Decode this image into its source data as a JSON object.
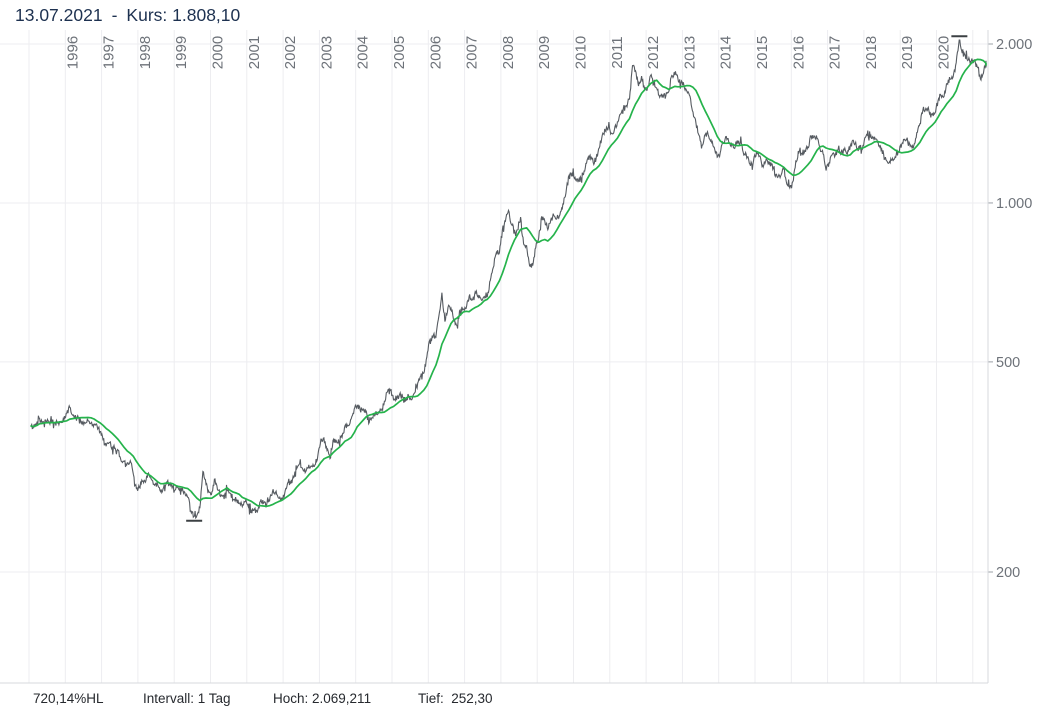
{
  "header": {
    "date": "13.07.2021",
    "separator": "-",
    "kurs": "Kurs: 1.808,10"
  },
  "footer": {
    "performance": "720,14%HL",
    "interval": "Intervall: 1 Tag",
    "high": "Hoch: 2.069,211",
    "low": "Tief:  252,30"
  },
  "colors": {
    "price": "#565b61",
    "average": "#25b34b",
    "grid": "#ededf0",
    "border": "#d7d9dd",
    "tick": "#9ba0a7",
    "marker": "#3c4043",
    "axis_text": "#6d7279",
    "title_text": "#1d3150",
    "footer_text": "#26292e"
  },
  "chart_data": {
    "type": "line",
    "scale": "log",
    "title": "13.07.2021 - Kurs: 1.808,10",
    "x_axis": {
      "gridline_years_start": 1995,
      "gridline_years_end": 2021,
      "year_labels": [
        "1996",
        "1997",
        "1998",
        "1999",
        "2000",
        "2001",
        "2002",
        "2003",
        "2004",
        "2005",
        "2006",
        "2007",
        "2008",
        "2009",
        "2010",
        "2011",
        "2012",
        "2013",
        "2014",
        "2015",
        "2016",
        "2017",
        "2018",
        "2019",
        "2020"
      ]
    },
    "y_axis": {
      "ticks": [
        {
          "value": 2000,
          "label": "2.000"
        },
        {
          "value": 1000,
          "label": "1.000"
        },
        {
          "value": 500,
          "label": "500"
        },
        {
          "value": 200,
          "label": "200"
        }
      ],
      "range_top": 2126,
      "range_bottom": 123
    },
    "series": [
      {
        "name": "Kurs",
        "color_key": "price",
        "start_year": 1995,
        "points_per_year": 12,
        "values": [
          378,
          376,
          382,
          391,
          385,
          388,
          386,
          384,
          383,
          383,
          385,
          387,
          400,
          410,
          396,
          392,
          391,
          385,
          383,
          387,
          383,
          381,
          378,
          369,
          355,
          346,
          352,
          344,
          343,
          340,
          324,
          324,
          322,
          325,
          306,
          288,
          289,
          297,
          296,
          308,
          299,
          292,
          293,
          284,
          289,
          296,
          294,
          291,
          287,
          287,
          286,
          283,
          277,
          261,
          255,
          256,
          265,
          310,
          293,
          283,
          284,
          300,
          286,
          280,
          275,
          286,
          282,
          274,
          273,
          270,
          266,
          272,
          266,
          261,
          263,
          260,
          272,
          270,
          267,
          272,
          284,
          283,
          276,
          276,
          281,
          295,
          294,
          302,
          314,
          321,
          313,
          310,
          319,
          317,
          319,
          333,
          357,
          359,
          340,
          328,
          355,
          356,
          351,
          360,
          379,
          379,
          390,
          407,
          414,
          405,
          407,
          403,
          384,
          392,
          398,
          400,
          405,
          421,
          439,
          442,
          424,
          423,
          434,
          429,
          422,
          431,
          424,
          437,
          456,
          470,
          476,
          510,
          550,
          555,
          557,
          611,
          676,
          596,
          634,
          632,
          599,
          586,
          627,
          630,
          631,
          665,
          655,
          679,
          667,
          656,
          665,
          665,
          713,
          755,
          806,
          804,
          890,
          923,
          968,
          910,
          889,
          889,
          940,
          836,
          830,
          760,
          761,
          822,
          858,
          943,
          924,
          890,
          929,
          946,
          934,
          949,
          996,
          1043,
          1127,
          1135,
          1118,
          1095,
          1113,
          1149,
          1205,
          1232,
          1193,
          1216,
          1271,
          1342,
          1370,
          1391,
          1356,
          1373,
          1424,
          1473,
          1513,
          1529,
          1573,
          1820,
          1780,
          1665,
          1739,
          1641,
          1656,
          1743,
          1674,
          1650,
          1585,
          1597,
          1594,
          1626,
          1744,
          1747,
          1721,
          1684,
          1671,
          1627,
          1593,
          1487,
          1414,
          1343,
          1286,
          1347,
          1348,
          1316,
          1276,
          1221,
          1244,
          1301,
          1336,
          1299,
          1288,
          1279,
          1311,
          1296,
          1237,
          1223,
          1176,
          1201,
          1251,
          1227,
          1178,
          1198,
          1199,
          1181,
          1130,
          1118,
          1125,
          1160,
          1086,
          1068,
          1097,
          1200,
          1246,
          1242,
          1260,
          1276,
          1337,
          1340,
          1327,
          1267,
          1238,
          1152,
          1192,
          1234,
          1231,
          1266,
          1246,
          1260,
          1237,
          1283,
          1314,
          1280,
          1282,
          1264,
          1331,
          1330,
          1325,
          1335,
          1303,
          1281,
          1238,
          1202,
          1198,
          1215,
          1221,
          1250,
          1292,
          1320,
          1301,
          1286,
          1284,
          1359,
          1413,
          1500,
          1511,
          1495,
          1471,
          1480,
          1561,
          1597,
          1592,
          1683,
          1716,
          1732,
          1843,
          2035,
          1922,
          1900,
          1866,
          1858,
          1867,
          1808,
          1718,
          1760,
          1850,
          1835,
          1808
        ]
      },
      {
        "name": "Gleitender Durchschnitt",
        "color_key": "average",
        "derived": "sma9_of_series_0"
      }
    ],
    "markers": {
      "high": {
        "value": 2069.211,
        "time": 2020.63
      },
      "low": {
        "value": 252.3,
        "time": 1999.55
      }
    },
    "last_point": {
      "date": "13.07.2021",
      "value": 1808.1
    }
  }
}
